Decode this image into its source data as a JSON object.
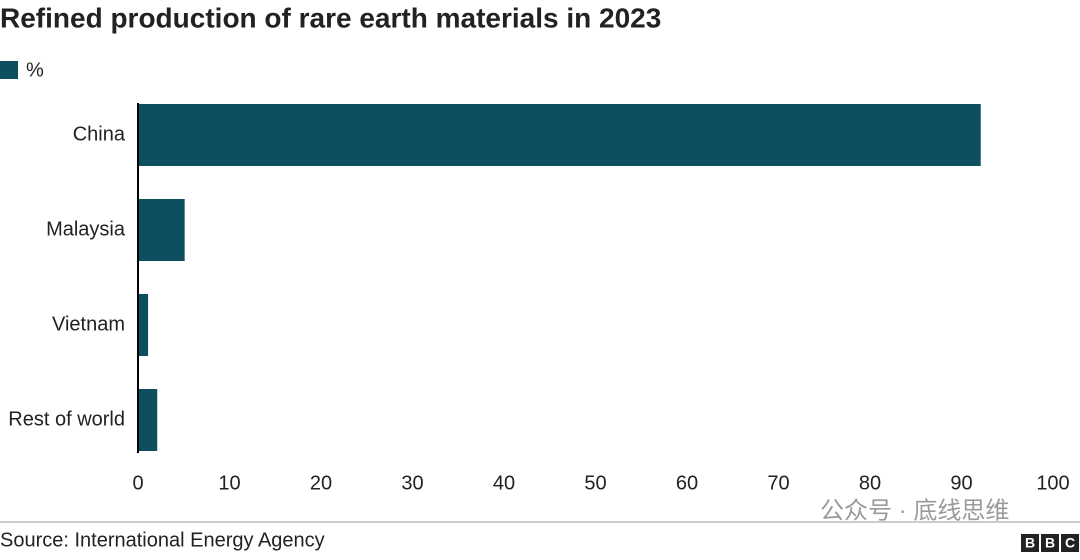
{
  "chart_data": {
    "type": "bar",
    "orientation": "horizontal",
    "title": "Refined production of rare earth materials in 2023",
    "categories": [
      "China",
      "Malaysia",
      "Vietnam",
      "Rest of world"
    ],
    "series": [
      {
        "name": "%",
        "color": "#0d4f5f",
        "values": [
          92.1,
          5.1,
          1.1,
          2.1
        ]
      }
    ],
    "xlim": [
      0,
      100
    ],
    "xticks": [
      0,
      10,
      20,
      30,
      40,
      50,
      60,
      70,
      80,
      90,
      100
    ],
    "grid": false,
    "legend": "top-left",
    "source": "Source: International Energy Agency",
    "watermark": "公众号 · 底线思维",
    "logo": [
      "B",
      "B",
      "C"
    ]
  }
}
